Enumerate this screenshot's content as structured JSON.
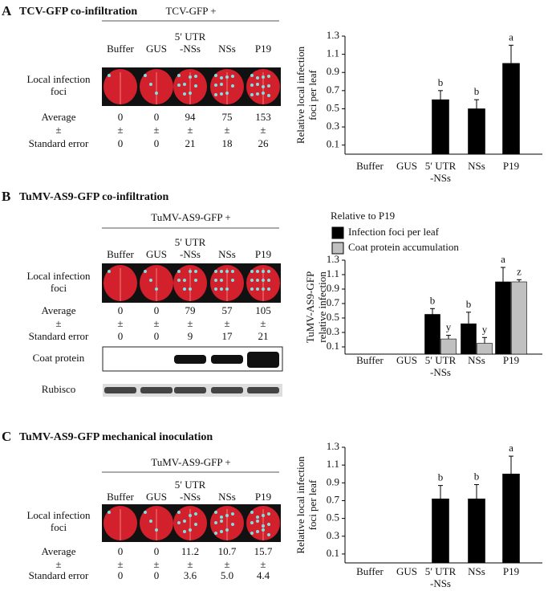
{
  "panels": [
    {
      "letter": "A",
      "title": "TCV-GFP co-infiltration",
      "group": "TCV-GFP +",
      "columns": [
        "Buffer",
        "GUS",
        "5′ UTR\n-NSs",
        "NSs",
        "P19"
      ],
      "row_labels": {
        "foci": "Local infection\nfoci",
        "average": "Average",
        "pm": "±",
        "se": "Standard error"
      },
      "average": [
        "0",
        "0",
        "94",
        "75",
        "153"
      ],
      "standard_error": [
        "0",
        "0",
        "21",
        "18",
        "26"
      ]
    },
    {
      "letter": "B",
      "title": "TuMV-AS9-GFP co-infiltration",
      "group": "TuMV-AS9-GFP +",
      "columns": [
        "Buffer",
        "GUS",
        "5′ UTR\n-NSs",
        "NSs",
        "P19"
      ],
      "row_labels": {
        "foci": "Local infection\nfoci",
        "average": "Average",
        "pm": "±",
        "se": "Standard error"
      },
      "average": [
        "0",
        "0",
        "79",
        "57",
        "105"
      ],
      "standard_error": [
        "0",
        "0",
        "9",
        "17",
        "21"
      ],
      "blots": [
        "Coat protein",
        "Rubisco"
      ]
    },
    {
      "letter": "C",
      "title": "TuMV-AS9-GFP mechanical inoculation",
      "group": "TuMV-AS9-GFP +",
      "columns": [
        "Buffer",
        "GUS",
        "5′ UTR\n-NSs",
        "NSs",
        "P19"
      ],
      "row_labels": {
        "foci": "Local infection\nfoci",
        "average": "Average",
        "pm": "±",
        "se": "Standard error"
      },
      "average": [
        "0",
        "0",
        "11.2",
        "10.7",
        "15.7"
      ],
      "standard_error": [
        "0",
        "0",
        "3.6",
        "5.0",
        "4.4"
      ]
    }
  ],
  "chart_data": [
    {
      "type": "bar",
      "ylabel": "Relative local infection\nfoci per leaf",
      "categories": [
        "Buffer",
        "GUS",
        "5′ UTR\n-NSs",
        "NSs",
        "P19"
      ],
      "values": [
        0,
        0,
        0.6,
        0.5,
        1.0
      ],
      "errors": [
        0,
        0,
        0.1,
        0.1,
        0.2
      ],
      "annotations": [
        null,
        null,
        "b",
        "b",
        "a"
      ],
      "color": "#000000",
      "ylim": [
        0,
        1.3
      ],
      "yticks": [
        0.1,
        0.3,
        0.5,
        0.7,
        0.9,
        1.1,
        1.3
      ]
    },
    {
      "type": "grouped_bar",
      "ylabel": "TuMV-AS9-GFP\nrelative infection",
      "legend_title": "Relative to P19",
      "categories": [
        "Buffer",
        "GUS",
        "5′ UTR\n-NSs",
        "NSs",
        "P19"
      ],
      "series": [
        {
          "name": "Infection foci per leaf",
          "color": "#000000",
          "values": [
            0,
            0,
            0.55,
            0.42,
            1.0
          ],
          "errors": [
            0,
            0,
            0.08,
            0.16,
            0.2
          ],
          "annotations": [
            null,
            null,
            "b",
            "b",
            "a"
          ]
        },
        {
          "name": "Coat protein accumulation",
          "color": "#c0c0c0",
          "values": [
            0,
            0,
            0.21,
            0.15,
            1.0
          ],
          "errors": [
            0,
            0,
            0.05,
            0.08,
            0.03
          ],
          "annotations": [
            null,
            null,
            "y",
            "y",
            "z"
          ]
        }
      ],
      "ylim": [
        0,
        1.3
      ],
      "yticks": [
        0.1,
        0.3,
        0.5,
        0.7,
        0.9,
        1.1,
        1.3
      ]
    },
    {
      "type": "bar",
      "ylabel": "Relative local infection\nfoci per leaf",
      "categories": [
        "Buffer",
        "GUS",
        "5′ UTR\n-NSs",
        "NSs",
        "P19"
      ],
      "values": [
        0,
        0,
        0.72,
        0.72,
        1.0
      ],
      "errors": [
        0,
        0,
        0.15,
        0.16,
        0.2
      ],
      "annotations": [
        null,
        null,
        "b",
        "b",
        "a"
      ],
      "color": "#000000",
      "ylim": [
        0,
        1.3
      ],
      "yticks": [
        0.1,
        0.3,
        0.5,
        0.7,
        0.9,
        1.1,
        1.3
      ]
    }
  ]
}
